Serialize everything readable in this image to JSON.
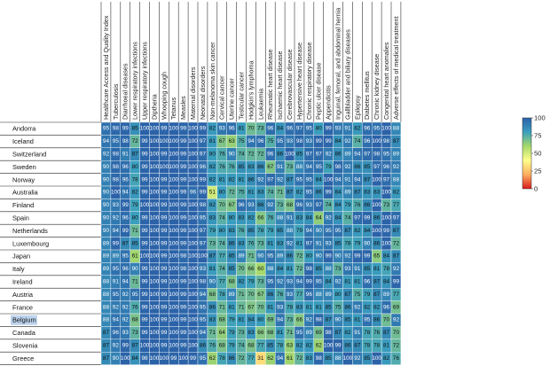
{
  "chart_data": {
    "type": "heatmap",
    "columns": [
      "Healthcare Access and Quality Index",
      "Tuberculosis",
      "Diarrhoeal diseases",
      "Lower respiratory infections",
      "Upper respiratory infections",
      "Diptheria",
      "Whooping cough",
      "Tetanus",
      "Measles",
      "Maternal disorders",
      "Neonatal disorders",
      "Non-melanoma skin cancer",
      "Cervical cancer",
      "Uterine cancer",
      "Testicular cancer",
      "Hodgkin's lymphoma",
      "Leukaemia",
      "Rheumatic heart disease",
      "Ischaemic heart disease",
      "Cerebrovascular disease",
      "Hypertensive heart disease",
      "Chronic respiratory disease",
      "Peptic ulcer disease",
      "Appendicitis",
      "Inguinal, femoral, and abdominal hernia",
      "Gallbladder and biliary diseases",
      "Epilepsy",
      "Diabetes mellitus",
      "Chronic kidney disease",
      "Congenital heart anomalies",
      "Adverse effects of medical treatment"
    ],
    "rows": [
      "Andorra",
      "Iceland",
      "Switzerland",
      "Sweden",
      "Norway",
      "Australia",
      "Finland",
      "Spain",
      "Netherlands",
      "Luxembourg",
      "Japan",
      "Italy",
      "Ireland",
      "Austria",
      "France",
      "Belgium",
      "Canada",
      "Slovenia",
      "Greece"
    ],
    "highlighted_row": "Belgium",
    "values": [
      [
        95,
        98,
        99,
        85,
        100,
        100,
        99,
        100,
        99,
        100,
        99,
        82,
        93,
        96,
        81,
        70,
        73,
        96,
        84,
        96,
        97,
        95,
        80,
        99,
        93,
        91,
        82,
        96,
        95,
        100,
        88
      ],
      [
        94,
        95,
        98,
        72,
        99,
        100,
        100,
        100,
        99,
        100,
        97,
        81,
        67,
        63,
        75,
        94,
        96,
        75,
        95,
        93,
        98,
        93,
        99,
        99,
        84,
        92,
        74,
        96,
        100,
        98,
        87
      ],
      [
        92,
        98,
        91,
        87,
        99,
        100,
        99,
        100,
        99,
        100,
        97,
        80,
        76,
        90,
        74,
        72,
        72,
        96,
        86,
        100,
        85,
        97,
        97,
        92,
        86,
        89,
        94,
        97,
        98,
        95,
        89
      ],
      [
        90,
        98,
        96,
        80,
        99,
        100,
        100,
        100,
        99,
        100,
        96,
        82,
        76,
        76,
        85,
        83,
        86,
        67,
        91,
        73,
        88,
        94,
        95,
        79,
        98,
        92,
        86,
        85,
        97,
        96,
        92
      ],
      [
        90,
        98,
        96,
        78,
        99,
        100,
        99,
        100,
        99,
        100,
        99,
        82,
        81,
        82,
        81,
        86,
        92,
        97,
        92,
        87,
        95,
        95,
        84,
        100,
        94,
        91,
        94,
        87,
        100,
        97,
        88
      ],
      [
        90,
        100,
        94,
        82,
        99,
        100,
        99,
        100,
        99,
        96,
        99,
        51,
        80,
        72,
        75,
        81,
        83,
        74,
        71,
        87,
        82,
        95,
        86,
        99,
        84,
        89,
        87,
        83,
        83,
        100,
        82
      ],
      [
        90,
        93,
        99,
        79,
        100,
        100,
        99,
        100,
        99,
        100,
        98,
        82,
        70,
        67,
        96,
        93,
        86,
        92,
        73,
        68,
        96,
        93,
        97,
        74,
        84,
        79,
        76,
        86,
        100,
        73,
        77
      ],
      [
        90,
        92,
        96,
        80,
        99,
        100,
        99,
        100,
        99,
        100,
        95,
        83,
        74,
        80,
        83,
        82,
        66,
        76,
        88,
        91,
        83,
        84,
        64,
        92,
        84,
        74,
        97,
        99,
        86,
        100,
        97
      ],
      [
        90,
        94,
        99,
        71,
        99,
        100,
        99,
        100,
        99,
        100,
        97,
        79,
        80,
        83,
        76,
        85,
        78,
        79,
        85,
        88,
        79,
        94,
        90,
        95,
        95,
        87,
        82,
        84,
        100,
        99,
        87
      ],
      [
        89,
        99,
        87,
        85,
        99,
        100,
        99,
        100,
        99,
        100,
        97,
        73,
        74,
        86,
        83,
        76,
        73,
        81,
        83,
        92,
        81,
        97,
        91,
        93,
        85,
        78,
        79,
        90,
        86,
        100,
        72
      ],
      [
        89,
        89,
        95,
        61,
        100,
        100,
        99,
        100,
        98,
        100,
        100,
        87,
        77,
        85,
        89,
        71,
        90,
        95,
        89,
        86,
        72,
        80,
        90,
        99,
        90,
        92,
        99,
        99,
        65,
        84,
        87
      ],
      [
        89,
        95,
        96,
        90,
        99,
        100,
        99,
        100,
        98,
        100,
        93,
        81,
        74,
        85,
        70,
        66,
        60,
        88,
        84,
        81,
        72,
        98,
        85,
        88,
        73,
        93,
        91,
        85,
        81,
        78,
        92
      ],
      [
        88,
        91,
        94,
        71,
        99,
        100,
        99,
        100,
        99,
        100,
        98,
        90,
        77,
        68,
        82,
        79,
        73,
        95,
        92,
        93,
        94,
        99,
        95,
        84,
        92,
        81,
        81,
        96,
        87,
        84,
        99
      ],
      [
        88,
        95,
        92,
        95,
        99,
        100,
        99,
        100,
        99,
        100,
        94,
        68,
        78,
        89,
        71,
        70,
        67,
        86,
        76,
        93,
        77,
        96,
        88,
        89,
        80,
        87,
        75,
        79,
        87,
        89,
        77
      ],
      [
        88,
        92,
        92,
        76,
        99,
        100,
        99,
        100,
        99,
        100,
        95,
        86,
        71,
        81,
        71,
        67,
        70,
        81,
        93,
        78,
        83,
        81,
        81,
        85,
        75,
        86,
        92,
        82,
        82,
        96,
        69
      ],
      [
        88,
        94,
        92,
        68,
        99,
        100,
        99,
        100,
        99,
        100,
        95,
        83,
        68,
        79,
        81,
        84,
        80,
        69,
        94,
        73,
        66,
        92,
        98,
        87,
        90,
        85,
        81,
        95,
        86,
        70,
        92
      ],
      [
        87,
        96,
        93,
        73,
        99,
        100,
        99,
        100,
        99,
        100,
        94,
        71,
        64,
        79,
        73,
        83,
        66,
        68,
        81,
        71,
        95,
        89,
        69,
        98,
        87,
        82,
        91,
        78,
        76,
        87,
        70
      ],
      [
        87,
        92,
        99,
        87,
        100,
        100,
        99,
        100,
        99,
        100,
        86,
        76,
        68,
        79,
        74,
        68,
        77,
        85,
        78,
        63,
        82,
        82,
        62,
        100,
        99,
        86,
        87,
        78,
        78,
        81,
        72
      ],
      [
        87,
        90,
        100,
        84,
        98,
        100,
        100,
        99,
        100,
        99,
        95,
        62,
        78,
        86,
        72,
        77,
        31,
        62,
        94,
        61,
        72,
        83,
        98,
        85,
        88,
        100,
        92,
        85,
        100,
        82,
        76
      ]
    ],
    "colorbar": {
      "ticks": [
        "100",
        "75",
        "50",
        "25",
        "0"
      ],
      "range": [
        0,
        100
      ]
    },
    "colors": {
      "stops": [
        "#d7191c",
        "#fdae61",
        "#ffff8c",
        "#a6d96a",
        "#3a9fbf",
        "#2b62a8"
      ]
    }
  }
}
